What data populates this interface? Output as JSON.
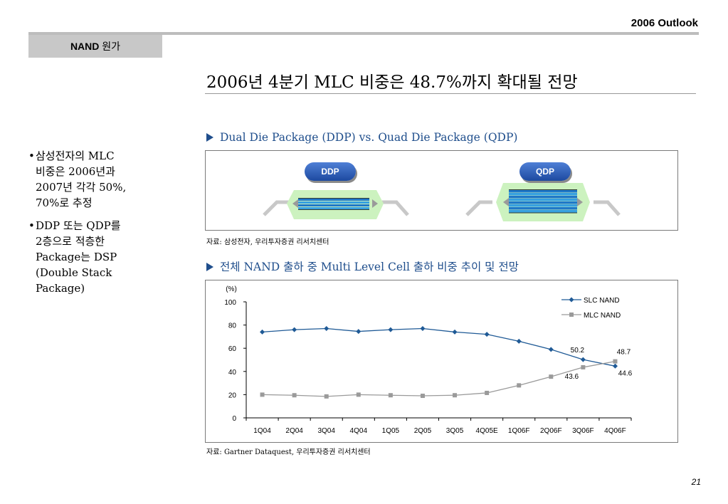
{
  "header": {
    "title": "2006 Outlook",
    "section_bold": "NAND",
    "section_rest": " 원가"
  },
  "main_title": "2006년 4분기 MLC 비중은 48.7%까지 확대될 전망",
  "bullets": [
    {
      "lines": [
        "삼성전자의 MLC",
        "비중은 2006년과",
        "2007년 각각 50%,",
        "70%로 추정"
      ]
    },
    {
      "lines": [
        "DDP 또는 QDP를",
        "2층으로 적층한",
        "Package는 DSP",
        "(Double Stack",
        "Package)"
      ]
    }
  ],
  "bullet_char": "•",
  "package_section": {
    "heading": "Dual Die Package (DDP) vs. Quad Die Package (QDP)",
    "ddp_label": "DDP",
    "qdp_label": "QDP",
    "source": "자료: 삼성전자, 우리투자증권 리서치센터"
  },
  "chart_section": {
    "heading": "전체 NAND 출하 중 Multi Level Cell 출하 비중 추이 및 전망",
    "source": "자료: Gartner Dataquest, 우리투자증권 리서치센터"
  },
  "colors": {
    "slc": "#1f5a96",
    "mlc": "#9a9a9a",
    "heading_blue": "#1f4e8c",
    "pill": "#1d4aa0",
    "package_green": "#ccf2bf"
  },
  "chart_data": {
    "type": "line",
    "ylabel": "(%)",
    "ylim": [
      0,
      100
    ],
    "yticks": [
      0,
      20,
      40,
      60,
      80,
      100
    ],
    "categories": [
      "1Q04",
      "2Q04",
      "3Q04",
      "4Q04",
      "1Q05",
      "2Q05",
      "3Q05",
      "4Q05E",
      "1Q06F",
      "2Q06F",
      "3Q06F",
      "4Q06F"
    ],
    "series": [
      {
        "name": "SLC NAND",
        "values": [
          74,
          76,
          77,
          74.5,
          76,
          77,
          74,
          72,
          66,
          59,
          50.2,
          44.6
        ]
      },
      {
        "name": "MLC NAND",
        "values": [
          20,
          19.5,
          18.5,
          20,
          19.5,
          19,
          19.5,
          21.5,
          28,
          35.5,
          43.6,
          48.7
        ]
      }
    ],
    "data_labels": [
      {
        "series": 0,
        "index": 10,
        "text": "50.2"
      },
      {
        "series": 1,
        "index": 11,
        "text": "48.7"
      },
      {
        "series": 1,
        "index": 10,
        "text": "43.6"
      },
      {
        "series": 0,
        "index": 11,
        "text": "44.6"
      }
    ],
    "legend_position": "top-right",
    "grid": false
  },
  "page_number": "21"
}
